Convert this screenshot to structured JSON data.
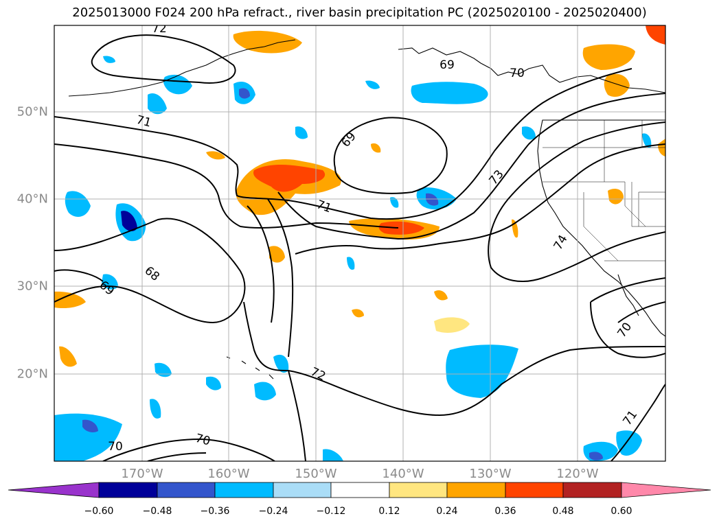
{
  "title": "2025013000 F024 200 hPa refract., river basin precipitation PC (2025020100 - 2025020400)",
  "map": {
    "lat_labels": [
      "50°N",
      "40°N",
      "30°N",
      "20°N"
    ],
    "lon_labels": [
      "170°W",
      "160°W",
      "150°W",
      "140°W",
      "130°W",
      "120°W"
    ],
    "contour_labels": [
      "72",
      "69",
      "70",
      "71",
      "69",
      "73",
      "74",
      "71",
      "68",
      "69",
      "72",
      "70",
      "70",
      "71",
      "70"
    ],
    "colors": {
      "land_outline": "#000000",
      "grid": "#b0b0b0",
      "label_gray": "#8a8a8a"
    }
  },
  "colorbar": {
    "ticks": [
      "−0.60",
      "−0.48",
      "−0.36",
      "−0.24",
      "−0.12",
      "0.12",
      "0.24",
      "0.36",
      "0.48",
      "0.60"
    ],
    "colors": [
      "#9933cc",
      "#000099",
      "#3355cc",
      "#00bbff",
      "#aaddf7",
      "#ffffff",
      "#ffe680",
      "#ffa500",
      "#ff4400",
      "#b22222",
      "#ff88aa"
    ]
  }
}
